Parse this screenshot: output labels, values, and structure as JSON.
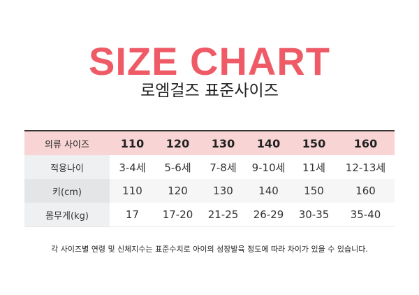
{
  "title": "SIZE CHART",
  "subtitle": "로엠걸즈 표준사이즈",
  "table": {
    "header": {
      "label": "의류 사이즈",
      "cols": [
        "110",
        "120",
        "130",
        "140",
        "150",
        "160"
      ]
    },
    "rows": [
      {
        "label": "적용나이",
        "values": [
          "3-4세",
          "5-6세",
          "7-8세",
          "9-10세",
          "11세",
          "12-13세"
        ]
      },
      {
        "label": "키(cm)",
        "values": [
          "110",
          "120",
          "130",
          "140",
          "150",
          "160"
        ]
      },
      {
        "label": "몸무게(kg)",
        "values": [
          "17",
          "17-20",
          "21-25",
          "26-29",
          "30-35",
          "35-40"
        ]
      }
    ]
  },
  "note": "각 사이즈별 연령 및 신체지수는 표준수치로 아이의 성장발육 정도에 따라 차이가 있을 수 있습니다.",
  "colors": {
    "accent": "#ee5a66",
    "header_bg": "#f9d4d4"
  }
}
